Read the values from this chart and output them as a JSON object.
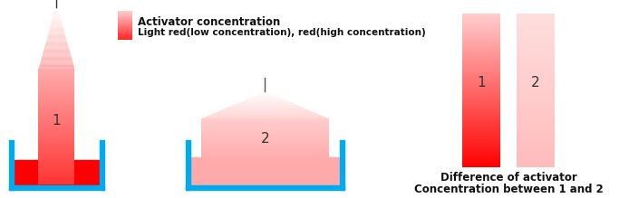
{
  "bg_color": "#ffffff",
  "cyan_color": "#00aaee",
  "red_high": "#ff0000",
  "red_medium": "#ff5555",
  "legend_title1": "Activator concentration",
  "legend_title2": "Light red(low concentration), red(high concentration)",
  "label1": "1",
  "label2": "2",
  "diff_label1": "1",
  "diff_label2": "2",
  "diff_text1": "Difference of activator",
  "diff_text2": "Concentration between 1 and 2",
  "wall_thickness": 5,
  "wall_color": "#00aaee"
}
